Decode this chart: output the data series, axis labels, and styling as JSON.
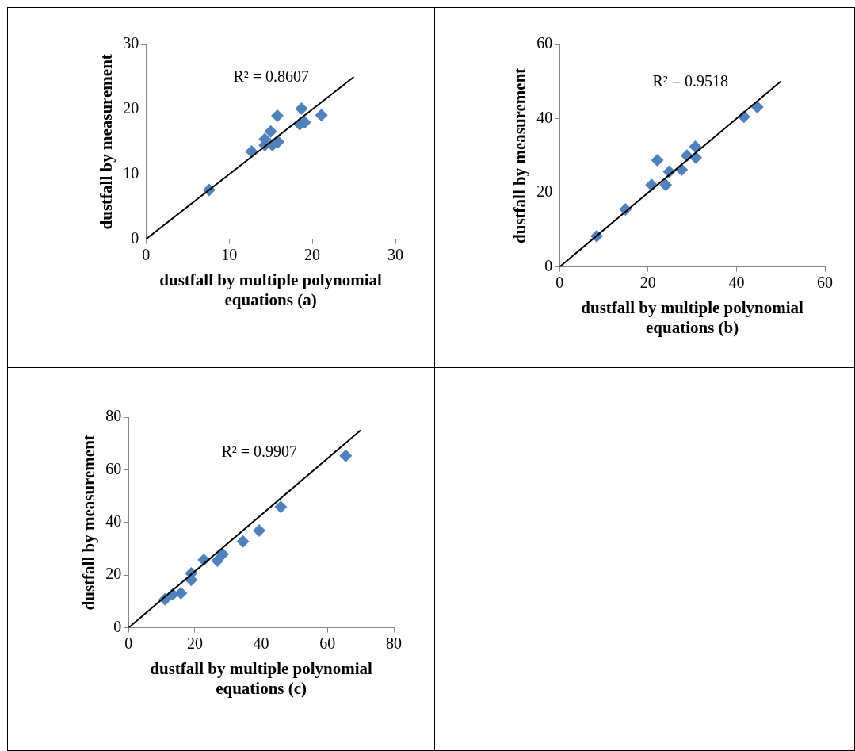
{
  "chart_data": [
    {
      "type": "scatter",
      "xlabel": "dustfall by multiple polynomial equations (a)",
      "ylabel": "dustfall by measurement",
      "xlim": [
        0,
        30
      ],
      "ylim": [
        0,
        30
      ],
      "xticks": [
        0,
        10,
        20,
        30
      ],
      "yticks": [
        0,
        10,
        20,
        30
      ],
      "annotations": [
        "R² = 0.8607"
      ],
      "series": [
        {
          "type": "scatter",
          "color": "#4f81bd",
          "marker": "diamond",
          "x": [
            7.6,
            12.7,
            14.3,
            14.3,
            15.0,
            15.2,
            15.9,
            15.8,
            18.7,
            18.5,
            19.1,
            21.1
          ],
          "values": [
            7.6,
            13.5,
            14.5,
            15.4,
            16.6,
            14.5,
            15.0,
            19.0,
            20.1,
            17.7,
            18.0,
            19.1
          ]
        },
        {
          "type": "line",
          "color": "#000000",
          "marker": "none",
          "x": [
            0,
            25
          ],
          "values": [
            0,
            25
          ]
        }
      ]
    },
    {
      "type": "scatter",
      "xlabel": "dustfall by multiple polynomial equations (b)",
      "ylabel": "dustfall by measurement",
      "xlim": [
        0,
        60
      ],
      "ylim": [
        0,
        60
      ],
      "xticks": [
        0,
        20,
        40,
        60
      ],
      "yticks": [
        0,
        20,
        40,
        60
      ],
      "annotations": [
        "R² = 0.9518"
      ],
      "series": [
        {
          "type": "scatter",
          "color": "#4f81bd",
          "marker": "diamond",
          "x": [
            8.4,
            14.9,
            20.8,
            22.1,
            24.0,
            24.8,
            27.6,
            28.8,
            30.7,
            30.8,
            41.7,
            44.7
          ],
          "values": [
            8.3,
            15.5,
            22.1,
            28.8,
            22.1,
            25.7,
            26.2,
            30.0,
            32.4,
            29.5,
            40.5,
            43.1
          ]
        },
        {
          "type": "line",
          "color": "#000000",
          "marker": "none",
          "x": [
            0,
            50
          ],
          "values": [
            0,
            50
          ]
        }
      ]
    },
    {
      "type": "scatter",
      "xlabel": "dustfall by multiple polynomial equations (c)",
      "ylabel": "dustfall by measurement",
      "xlim": [
        0,
        80
      ],
      "ylim": [
        0,
        80
      ],
      "xticks": [
        0,
        20,
        40,
        60,
        80
      ],
      "yticks": [
        0,
        20,
        40,
        60,
        80
      ],
      "annotations": [
        "R² = 0.9907"
      ],
      "series": [
        {
          "type": "scatter",
          "color": "#4f81bd",
          "marker": "diamond",
          "x": [
            11.0,
            13.3,
            15.8,
            18.9,
            18.9,
            22.7,
            26.8,
            28.4,
            34.5,
            39.4,
            45.9,
            65.5
          ],
          "values": [
            10.8,
            12.7,
            13.1,
            20.7,
            18.2,
            25.8,
            25.5,
            28.0,
            32.8,
            36.9,
            45.9,
            65.3
          ]
        },
        {
          "type": "line",
          "color": "#000000",
          "marker": "none",
          "x": [
            0,
            70
          ],
          "values": [
            0,
            75
          ]
        }
      ]
    }
  ]
}
